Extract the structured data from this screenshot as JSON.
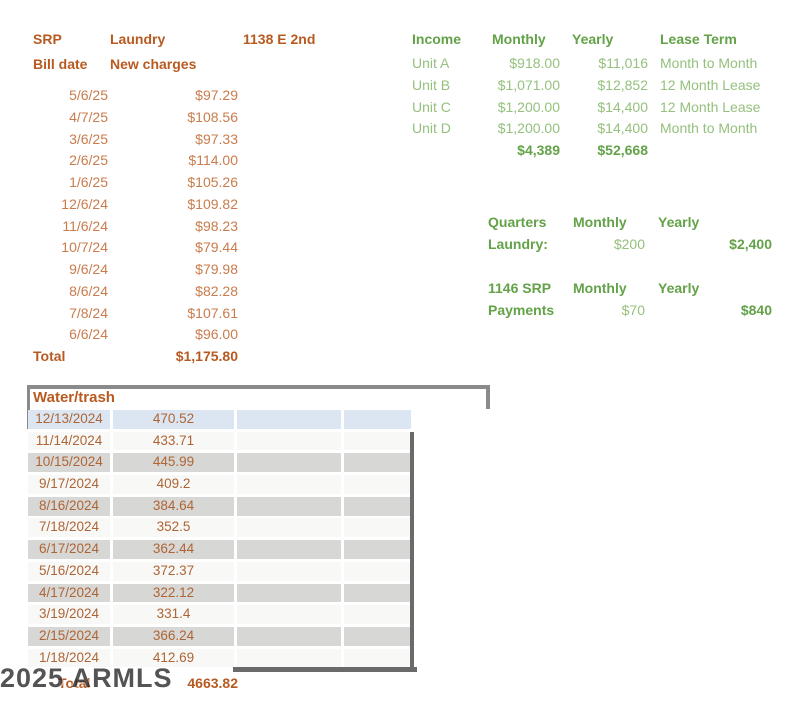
{
  "colors": {
    "orange_bold": "#b85a20",
    "orange_value": "#c97c4d",
    "orange_table": "#ae6535",
    "green_bold": "#63a248",
    "green_value": "#95c07d",
    "row_blue": "#dbe6f2",
    "row_gray": "#d7d7d5",
    "row_white": "#f8f8f7",
    "frame_gray": "#8a8a8a",
    "shadow_gray": "#6a6a6a"
  },
  "srp": {
    "title": "SRP",
    "category": "Laundry",
    "address": "1138 E 2nd",
    "col_date": "Bill date",
    "col_charges": "New charges",
    "rows": [
      {
        "date": "5/6/25",
        "amount": "$97.29"
      },
      {
        "date": "4/7/25",
        "amount": "$108.56"
      },
      {
        "date": "3/6/25",
        "amount": "$97.33"
      },
      {
        "date": "2/6/25",
        "amount": "$114.00"
      },
      {
        "date": "1/6/25",
        "amount": "$105.26"
      },
      {
        "date": "12/6/24",
        "amount": "$109.82"
      },
      {
        "date": "11/6/24",
        "amount": "$98.23"
      },
      {
        "date": "10/7/24",
        "amount": "$79.44"
      },
      {
        "date": "9/6/24",
        "amount": "$79.98"
      },
      {
        "date": "8/6/24",
        "amount": "$82.28"
      },
      {
        "date": "7/8/24",
        "amount": "$107.61"
      },
      {
        "date": "6/6/24",
        "amount": "$96.00"
      }
    ],
    "total_label": "Total",
    "total_value": "$1,175.80"
  },
  "income": {
    "col_income": "Income",
    "col_monthly": "Monthly",
    "col_yearly": "Yearly",
    "col_lease": "Lease Term",
    "rows": [
      {
        "unit": "Unit A",
        "monthly": "$918.00",
        "yearly": "$11,016",
        "lease": "Month to Month"
      },
      {
        "unit": "Unit B",
        "monthly": "$1,071.00",
        "yearly": "$12,852",
        "lease": "12 Month Lease"
      },
      {
        "unit": "Unit C",
        "monthly": "$1,200.00",
        "yearly": "$14,400",
        "lease": "12 Month Lease"
      },
      {
        "unit": "Unit D",
        "monthly": "$1,200.00",
        "yearly": "$14,400",
        "lease": "Month to Month"
      }
    ],
    "total_monthly": "$4,389",
    "total_yearly": "$52,668"
  },
  "quarters": {
    "label": "Quarters",
    "col_monthly": "Monthly",
    "col_yearly": "Yearly",
    "row_label": "Laundry:",
    "monthly": "$200",
    "yearly": "$2,400"
  },
  "payments_1146": {
    "label": "1146 SRP",
    "col_monthly": "Monthly",
    "col_yearly": "Yearly",
    "row_label": "Payments",
    "monthly": "$70",
    "yearly": "$840"
  },
  "water": {
    "title": "Water/trash",
    "rows": [
      {
        "date": "12/13/2024",
        "amount": "470.52"
      },
      {
        "date": "11/14/2024",
        "amount": "433.71"
      },
      {
        "date": "10/15/2024",
        "amount": "445.99"
      },
      {
        "date": "9/17/2024",
        "amount": "409.2"
      },
      {
        "date": "8/16/2024",
        "amount": "384.64"
      },
      {
        "date": "7/18/2024",
        "amount": "352.5"
      },
      {
        "date": "6/17/2024",
        "amount": "362.44"
      },
      {
        "date": "5/16/2024",
        "amount": "372.37"
      },
      {
        "date": "4/17/2024",
        "amount": "322.12"
      },
      {
        "date": "3/19/2024",
        "amount": "331.4"
      },
      {
        "date": "2/15/2024",
        "amount": "366.24"
      },
      {
        "date": "1/18/2024",
        "amount": "412.69"
      }
    ],
    "total_label": "Total",
    "total_value": "4663.82"
  },
  "watermark": "2025 ARMLS"
}
